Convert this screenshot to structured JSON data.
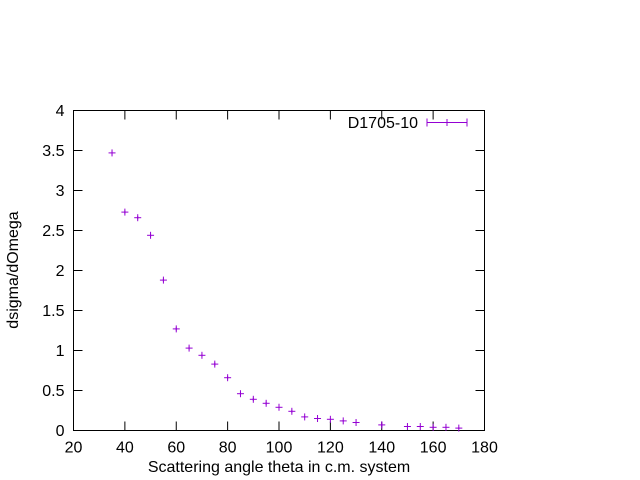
{
  "chart_data": {
    "type": "scatter",
    "title": "",
    "xlabel": "Scattering angle theta in c.m. system",
    "ylabel": "dsigma/dOmega",
    "xlim": [
      20,
      180
    ],
    "ylim": [
      0,
      4
    ],
    "xticks": [
      20,
      40,
      60,
      80,
      100,
      120,
      140,
      160,
      180
    ],
    "yticks": [
      0,
      0.5,
      1,
      1.5,
      2,
      2.5,
      3,
      3.5,
      4
    ],
    "xtick_labels": [
      "20",
      "40",
      "60",
      "80",
      "100",
      "120",
      "140",
      "160",
      "180"
    ],
    "ytick_labels": [
      "0",
      "0.5",
      "1",
      "1.5",
      "2",
      "2.5",
      "3",
      "3.5",
      "4"
    ],
    "grid": false,
    "legend_position": "top-right",
    "series": [
      {
        "name": "D1705-10",
        "color": "#9400d3",
        "marker": "plus",
        "x": [
          35,
          40,
          45,
          50,
          55,
          60,
          65,
          70,
          75,
          80,
          85,
          90,
          95,
          100,
          105,
          110,
          115,
          120,
          125,
          130,
          140,
          150,
          155,
          160,
          165,
          170
        ],
        "y": [
          3.47,
          2.73,
          2.66,
          2.44,
          1.88,
          1.27,
          1.03,
          0.94,
          0.83,
          0.66,
          0.46,
          0.39,
          0.34,
          0.29,
          0.24,
          0.17,
          0.15,
          0.14,
          0.12,
          0.1,
          0.07,
          0.05,
          0.05,
          0.04,
          0.04,
          0.03
        ],
        "yerr": [
          0.03,
          0.02,
          0.02,
          0.02,
          0.02,
          0.02,
          0.02,
          0.02,
          0.02,
          0.02,
          0.02,
          0.02,
          0.02,
          0.02,
          0.02,
          0.01,
          0.01,
          0.01,
          0.01,
          0.01,
          0.03,
          0.01,
          0.01,
          0.01,
          0.01,
          0.01
        ]
      }
    ]
  }
}
